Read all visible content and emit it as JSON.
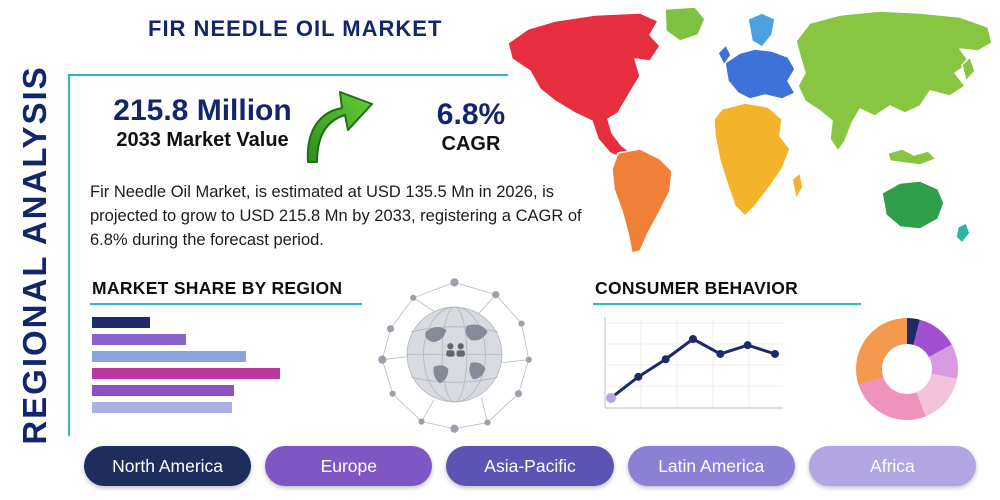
{
  "colors": {
    "navy": "#14266b",
    "accent_teal": "#2fb7c9",
    "heading_text": "#0d0d0d",
    "body_text": "#1c1c1c",
    "arrow_green": "#46ad2b"
  },
  "page": {
    "title": "FIR NEEDLE OIL MARKET",
    "side_label": "REGIONAL ANALYSIS"
  },
  "highlight": {
    "market_value": "215.8 Million",
    "market_value_label": "2033 Market Value",
    "cagr_value": "6.8%",
    "cagr_label": "CAGR"
  },
  "description": "Fir Needle Oil Market, is estimated at USD 135.5 Mn in 2026, is projected to grow to USD 215.8 Mn by 2033, registering a CAGR of 6.8% during the forecast period.",
  "sections": {
    "market_share": {
      "heading": "MARKET SHARE BY REGION"
    },
    "consumer_behavior": {
      "heading": "CONSUMER BEHAVIOR"
    }
  },
  "region_pills": [
    {
      "label": "North America",
      "color": "#1c2d5e"
    },
    {
      "label": "Europe",
      "color": "#7e57c5"
    },
    {
      "label": "Asia-Pacific",
      "color": "#5b54b4"
    },
    {
      "label": "Latin America",
      "color": "#8c7fd6"
    },
    {
      "label": "Africa",
      "color": "#b2a5e4"
    }
  ],
  "map": {
    "colors": {
      "north-america": "#e62e3e",
      "greenland": "#7dc242",
      "south-america": "#f08038",
      "europe": "#3e72d8",
      "europe-north": "#4aa3e0",
      "africa": "#f3b32b",
      "asia": "#88c540",
      "australia": "#2f9e49",
      "oceania": "#2ab6a0"
    }
  },
  "chart_data": [
    {
      "type": "bar",
      "title": "MARKET SHARE BY REGION",
      "orientation": "horizontal",
      "values": [
        29,
        47,
        77,
        94,
        71,
        70
      ],
      "value_unit": "relative-width-percent (no numeric axis labels shown)",
      "colors": [
        "#1e2a66",
        "#8a63cc",
        "#8aa4de",
        "#bb37a1",
        "#8e50c0",
        "#a9b0e5"
      ],
      "xlim": [
        0,
        100
      ],
      "axis_labels": "none",
      "grid": false
    },
    {
      "type": "line",
      "title": "CONSUMER BEHAVIOR",
      "x": [
        1,
        2,
        3,
        4,
        5,
        6,
        7
      ],
      "values": [
        8,
        32,
        52,
        75,
        58,
        68,
        58
      ],
      "ylim": [
        0,
        100
      ],
      "line_color": "#1e2a66",
      "start_point_color": "#b7a4e6",
      "grid": true,
      "axis_labels": "none",
      "legend": "none"
    },
    {
      "type": "pie",
      "title": "Regional share donut",
      "donut": true,
      "values": [
        4,
        13,
        11,
        16,
        26,
        30
      ],
      "colors": [
        "#1e2a66",
        "#a24fd4",
        "#d89ae0",
        "#f3c3da",
        "#ef93bd",
        "#f2994e"
      ],
      "labels": "none shown"
    }
  ]
}
